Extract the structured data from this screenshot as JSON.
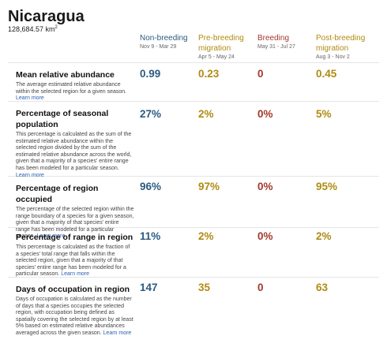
{
  "region": {
    "name": "Nicaragua",
    "area_value": "128,684.57 km",
    "area_unit_exp": "2"
  },
  "colors": {
    "nonbreeding": "#2c5b82",
    "prebreeding": "#b08b12",
    "breeding": "#a3392c",
    "postbreeding": "#b08b12"
  },
  "seasons": [
    {
      "name": "Non-breeding",
      "dates": "Nov 9 - Mar 29"
    },
    {
      "name": "Pre-breeding migration",
      "dates": "Apr 5 - May 24"
    },
    {
      "name": "Breeding",
      "dates": "May 31 - Jul 27"
    },
    {
      "name": "Post-breeding migration",
      "dates": "Aug 3 - Nov 2"
    }
  ],
  "learn_more": "Learn more",
  "metrics": [
    {
      "title": "Mean relative abundance",
      "description": "The average estimated relative abundance within the selected region for a given season.",
      "values": [
        "0.99",
        "0.23",
        "0",
        "0.45"
      ]
    },
    {
      "title": "Percentage of seasonal population",
      "description": "This percentage is calculated as the sum of the estimated relative abundance within the selected region divided by the sum of the estimated relative abundance across the world, given that a majority of a species' entire range has been modeled for a particular season.",
      "values": [
        "27%",
        "2%",
        "0%",
        "5%"
      ]
    },
    {
      "title": "Percentage of region occupied",
      "description": "The percentage of the selected region within the range boundary of a species for a given season, given that a majority of that species' entire range has been modeled for a particular season.",
      "values": [
        "96%",
        "97%",
        "0%",
        "95%"
      ]
    },
    {
      "title": "Percentage of range in region",
      "description": "This percentage is calculated as the fraction of a species' total range that falls within the selected region, given that a majority of that species' entire range has been modeled for a particular season.",
      "values": [
        "11%",
        "2%",
        "0%",
        "2%"
      ]
    },
    {
      "title": "Days of occupation in region",
      "description": "Days of occupation is calculated as the number of days that a species occupies the selected region, with occupation being defined as spatially covering the selected region by at least 5% based on estimated relative abundances averaged across the given season.",
      "values": [
        "147",
        "35",
        "0",
        "63"
      ]
    }
  ]
}
